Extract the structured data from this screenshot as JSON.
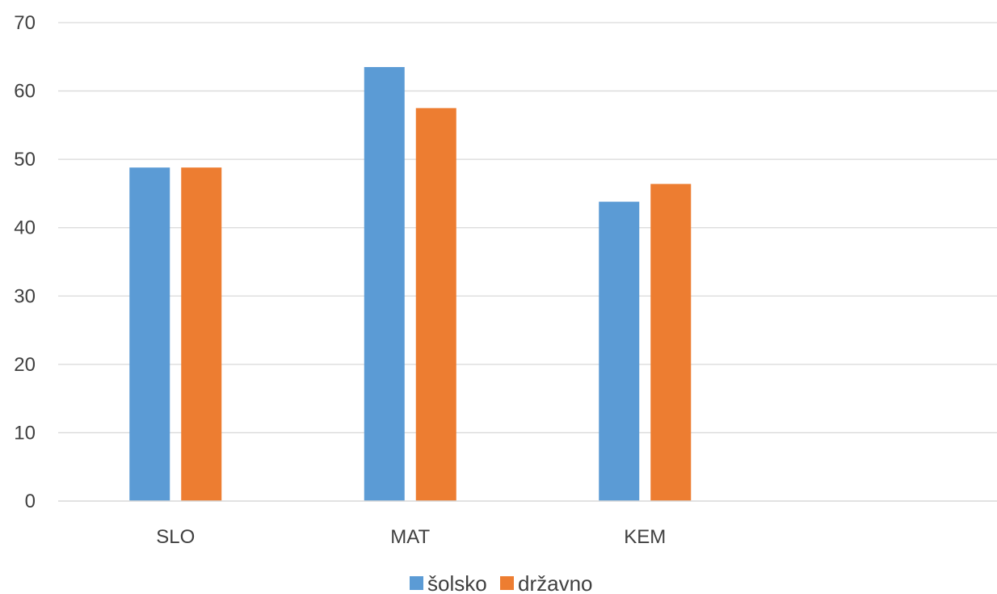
{
  "chart_data": {
    "type": "bar",
    "categories": [
      "SLO",
      "MAT",
      "KEM",
      ""
    ],
    "series": [
      {
        "name": "šolsko",
        "values": [
          48.8,
          63.5,
          43.8,
          null
        ],
        "color": "#5B9BD5"
      },
      {
        "name": "državno",
        "values": [
          48.8,
          57.5,
          46.4,
          null
        ],
        "color": "#ED7D31"
      }
    ],
    "ylim": [
      0,
      70
    ],
    "yticks": [
      0,
      10,
      20,
      30,
      40,
      50,
      60,
      70
    ],
    "title": "",
    "xlabel": "",
    "ylabel": "",
    "grid": true,
    "legend": "bottom",
    "colors": {
      "grid": "#D9D9D9",
      "text": "#404040"
    }
  }
}
